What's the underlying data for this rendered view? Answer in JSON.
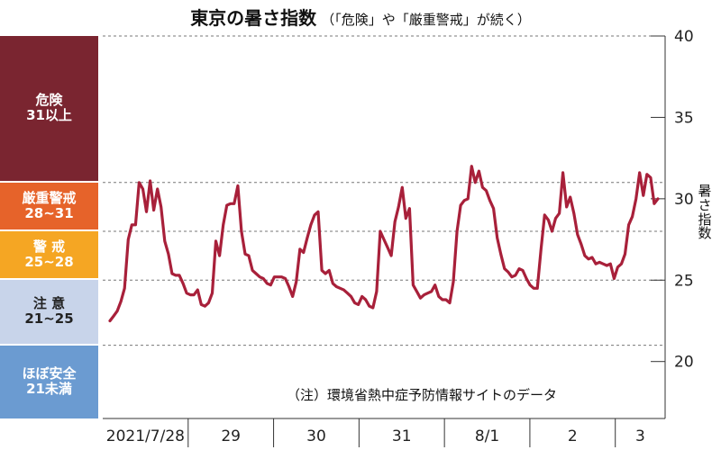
{
  "title": "東京の暑さ指数",
  "subtitle": "（「危険」や「厳重警戒」が続く）",
  "note": "（注）環境省熱中症予防情報サイトのデータ",
  "colors": {
    "line": "#a8203a",
    "grid": "#777777",
    "axis": "#333333"
  },
  "bands": [
    {
      "name": "danger",
      "label": "危険",
      "range": "31以上",
      "bg": "#7a2530",
      "fg": "#ffffff",
      "min": 31,
      "max": 40
    },
    {
      "name": "severe",
      "label": "厳重警戒",
      "range": "28~31",
      "bg": "#e6632a",
      "fg": "#ffffff",
      "min": 28,
      "max": 31
    },
    {
      "name": "warning",
      "label": "警 戒",
      "range": "25~28",
      "bg": "#f5a623",
      "fg": "#ffffff",
      "min": 25,
      "max": 28
    },
    {
      "name": "caution",
      "label": "注 意",
      "range": "21~25",
      "bg": "#c8d4ea",
      "fg": "#222222",
      "min": 21,
      "max": 25
    },
    {
      "name": "safe",
      "label": "ほぼ安全",
      "range": "21未満",
      "bg": "#6b9bd1",
      "fg": "#ffffff",
      "min": 16.5,
      "max": 21
    }
  ],
  "chart_data": {
    "type": "line",
    "title": "東京の暑さ指数",
    "subtitle": "（「危険」や「厳重警戒」が続く）",
    "xlabel": "",
    "ylabel": "暑さ指数",
    "ylim": [
      16.5,
      40
    ],
    "yticks": [
      20,
      25,
      30,
      35,
      40
    ],
    "gridlines": [
      21,
      25,
      28,
      31,
      40
    ],
    "grid": "dashed",
    "xticks": [
      {
        "label": "2021/7/28",
        "start": 0
      },
      {
        "label": "29",
        "start": 24
      },
      {
        "label": "30",
        "start": 48
      },
      {
        "label": "31",
        "start": 72
      },
      {
        "label": "8/1",
        "start": 96
      },
      {
        "label": "2",
        "start": 120
      },
      {
        "label": "3",
        "start": 144
      }
    ],
    "x_end": 158,
    "series": [
      {
        "values": [
          22.5,
          22.8,
          23.1,
          23.7,
          24.5,
          27.5,
          28.4,
          28.4,
          31.0,
          30.6,
          29.2,
          31.1,
          29.3,
          30.6,
          29.5,
          27.4,
          26.6,
          25.4,
          25.3,
          25.3,
          24.8,
          24.2,
          24.1,
          24.1,
          24.4,
          23.5,
          23.4,
          23.6,
          24.2,
          27.4,
          26.5,
          28.4,
          29.6,
          29.7,
          29.7,
          30.8,
          28.0,
          26.6,
          26.5,
          25.6,
          25.4,
          25.2,
          25.1,
          24.8,
          24.7,
          25.2,
          25.2,
          25.2,
          25.1,
          24.6,
          24.0,
          24.9,
          26.9,
          26.7,
          27.6,
          28.4,
          29.0,
          29.2,
          25.6,
          25.4,
          25.6,
          24.8,
          24.6,
          24.5,
          24.4,
          24.2,
          24.0,
          23.6,
          23.5,
          24.0,
          23.8,
          23.4,
          23.3,
          24.3,
          28.0,
          27.5,
          27.0,
          26.5,
          28.6,
          29.5,
          30.7,
          28.8,
          29.4,
          24.7,
          24.3,
          23.9,
          24.1,
          24.2,
          24.3,
          24.7,
          24.0,
          23.8,
          23.8,
          23.6,
          24.9,
          28.0,
          29.6,
          29.9,
          30.0,
          32.0,
          31.0,
          31.7,
          30.7,
          30.5,
          29.9,
          29.4,
          27.6,
          26.6,
          25.7,
          25.5,
          25.2,
          25.3,
          25.7,
          25.6,
          25.1,
          24.7,
          24.5,
          24.5,
          26.9,
          29.0,
          28.7,
          28.0,
          28.8,
          29.1,
          31.6,
          29.5,
          30.1,
          29.1,
          27.8,
          27.2,
          26.5,
          26.3,
          26.4,
          26.0,
          26.1,
          26.0,
          25.9,
          26.0,
          25.1,
          25.8,
          26.0,
          26.6,
          28.4,
          28.9,
          30.0,
          31.6,
          30.2,
          31.5,
          31.3,
          29.7,
          30.0
        ]
      }
    ]
  }
}
